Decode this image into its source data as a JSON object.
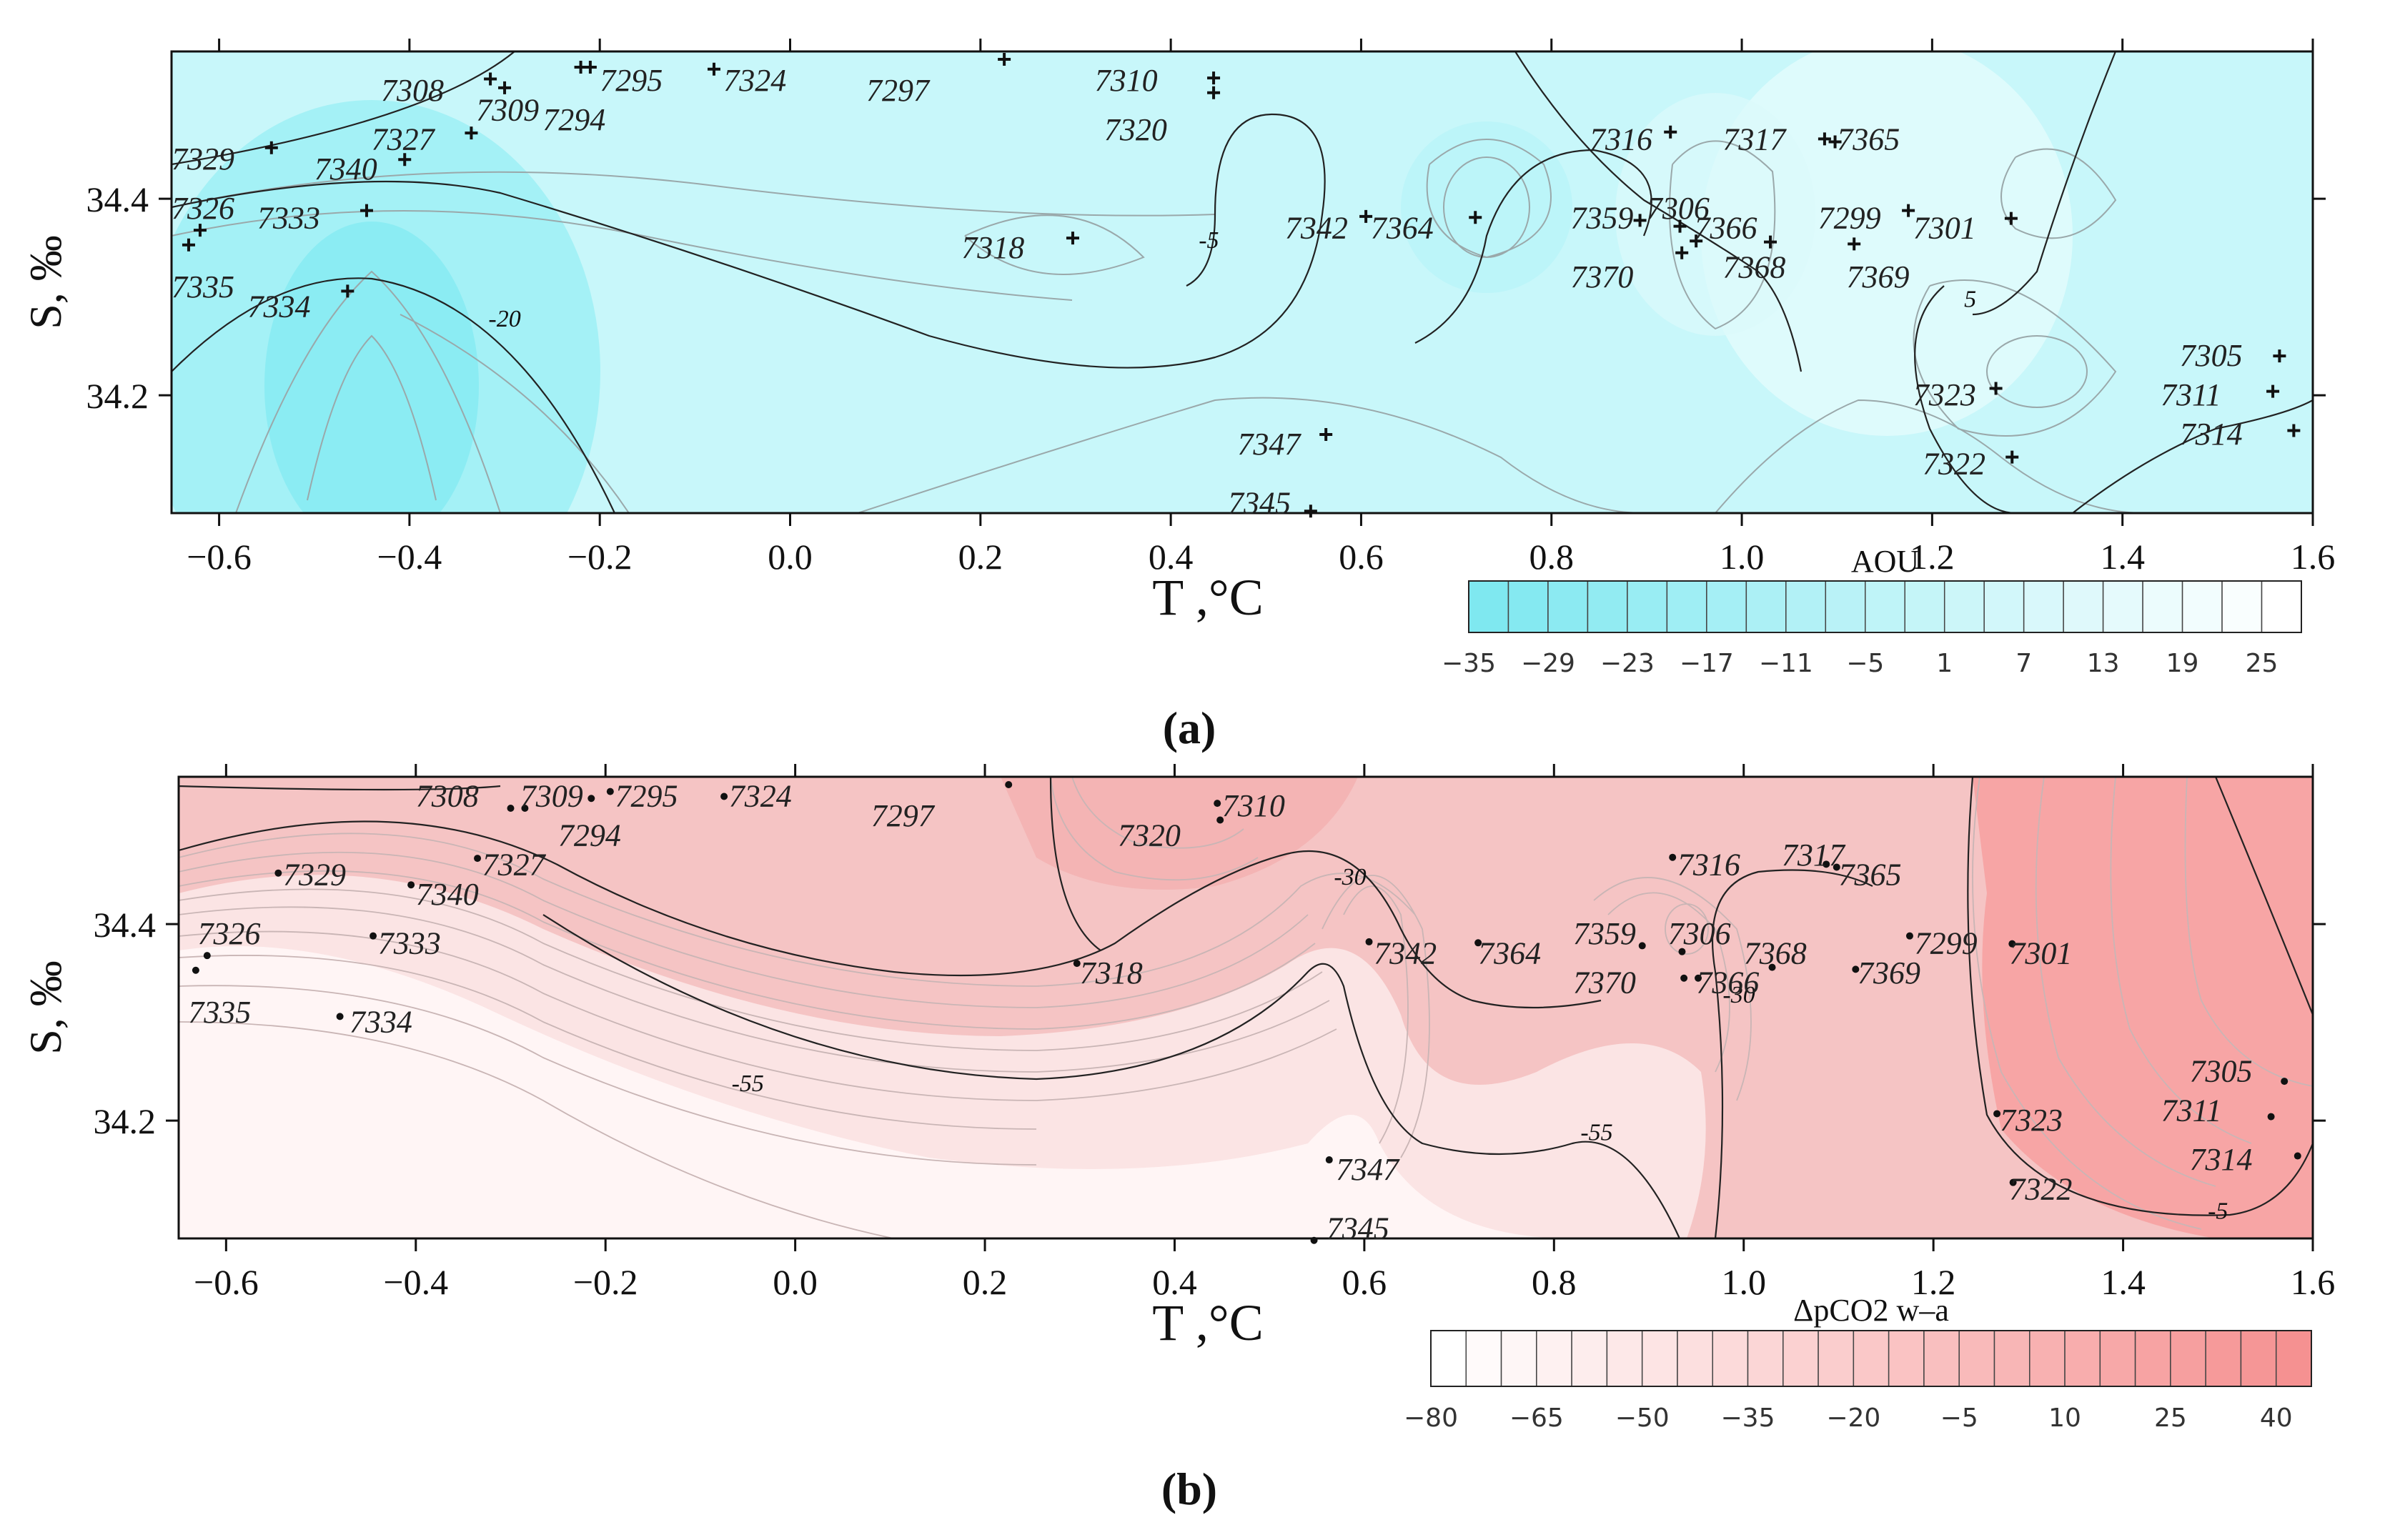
{
  "chart_data": [
    {
      "type": "contour",
      "panel_label": "(a)",
      "xlabel": "T ,°C",
      "ylabel": "S, ‰",
      "xlim": [
        -0.65,
        1.6
      ],
      "ylim": [
        34.08,
        34.55
      ],
      "xticks": [
        -0.6,
        -0.4,
        -0.2,
        0.0,
        0.2,
        0.4,
        0.6,
        0.8,
        1.0,
        1.2,
        1.4,
        1.6
      ],
      "xtick_labels": [
        "−0.6",
        "−0.4",
        "−0.2",
        "0.0",
        "0.2",
        "0.4",
        "0.6",
        "0.8",
        "1.0",
        "1.2",
        "1.4",
        "1.6"
      ],
      "yticks": [
        34.2,
        34.4
      ],
      "ytick_labels": [
        "34.2",
        "34.4"
      ],
      "colorbar": {
        "title": "AOU",
        "ticks": [
          "−35",
          "−29",
          "−23",
          "−17",
          "−11",
          "−5",
          "1",
          "7",
          "13",
          "19",
          "25"
        ],
        "cells": 21,
        "color_low": "#7fe8f0",
        "color_high": "#ffffff"
      },
      "background_color": "#c8f7fa",
      "contour_labels": [
        {
          "label": "-20",
          "x": -0.3,
          "y": 34.27
        },
        {
          "label": "-5",
          "x": 0.44,
          "y": 34.35
        },
        {
          "label": "5",
          "x": 1.24,
          "y": 34.29
        }
      ],
      "stations": [
        {
          "id": "7308",
          "t": -0.315,
          "s": 34.522,
          "lx": -0.43,
          "ly": 34.51
        },
        {
          "id": "7309",
          "t": -0.3,
          "s": 34.513,
          "lx": -0.33,
          "ly": 34.49
        },
        {
          "id": "7295",
          "t": -0.21,
          "s": 34.534,
          "lx": -0.2,
          "ly": 34.52
        },
        {
          "id": "7294",
          "t": -0.22,
          "s": 34.534,
          "lx": -0.26,
          "ly": 34.48
        },
        {
          "id": "7324",
          "t": -0.08,
          "s": 34.532,
          "lx": -0.07,
          "ly": 34.52
        },
        {
          "id": "7297",
          "t": 0.225,
          "s": 34.542,
          "lx": 0.08,
          "ly": 34.51
        },
        {
          "id": "7310",
          "t": 0.445,
          "s": 34.523,
          "lx": 0.32,
          "ly": 34.52
        },
        {
          "id": "7320",
          "t": 0.445,
          "s": 34.508,
          "lx": 0.33,
          "ly": 34.47
        },
        {
          "id": "7327",
          "t": -0.335,
          "s": 34.467,
          "lx": -0.44,
          "ly": 34.46
        },
        {
          "id": "7329",
          "t": -0.545,
          "s": 34.452,
          "lx": -0.65,
          "ly": 34.44
        },
        {
          "id": "7340",
          "t": -0.405,
          "s": 34.44,
          "lx": -0.5,
          "ly": 34.43
        },
        {
          "id": "7326",
          "t": -0.62,
          "s": 34.368,
          "lx": -0.65,
          "ly": 34.39
        },
        {
          "id": "7333",
          "t": -0.445,
          "s": 34.388,
          "lx": -0.56,
          "ly": 34.38
        },
        {
          "id": "7335",
          "t": -0.632,
          "s": 34.353,
          "lx": -0.65,
          "ly": 34.31
        },
        {
          "id": "7334",
          "t": -0.465,
          "s": 34.306,
          "lx": -0.57,
          "ly": 34.29
        },
        {
          "id": "7318",
          "t": 0.297,
          "s": 34.36,
          "lx": 0.18,
          "ly": 34.35
        },
        {
          "id": "7316",
          "t": 0.925,
          "s": 34.468,
          "lx": 0.84,
          "ly": 34.46
        },
        {
          "id": "7317",
          "t": 1.087,
          "s": 34.461,
          "lx": 0.98,
          "ly": 34.46
        },
        {
          "id": "7365",
          "t": 1.098,
          "s": 34.458,
          "lx": 1.1,
          "ly": 34.46
        },
        {
          "id": "7342",
          "t": 0.605,
          "s": 34.382,
          "lx": 0.52,
          "ly": 34.37
        },
        {
          "id": "7364",
          "t": 0.72,
          "s": 34.381,
          "lx": 0.61,
          "ly": 34.37
        },
        {
          "id": "7359",
          "t": 0.893,
          "s": 34.378,
          "lx": 0.82,
          "ly": 34.38
        },
        {
          "id": "7306",
          "t": 0.935,
          "s": 34.372,
          "lx": 0.9,
          "ly": 34.39
        },
        {
          "id": "7366",
          "t": 0.952,
          "s": 34.357,
          "lx": 0.95,
          "ly": 34.37
        },
        {
          "id": "7370",
          "t": 0.937,
          "s": 34.345,
          "lx": 0.82,
          "ly": 34.32
        },
        {
          "id": "7368",
          "t": 1.03,
          "s": 34.356,
          "lx": 0.98,
          "ly": 34.33
        },
        {
          "id": "7369",
          "t": 1.118,
          "s": 34.354,
          "lx": 1.11,
          "ly": 34.32
        },
        {
          "id": "7299",
          "t": 1.175,
          "s": 34.388,
          "lx": 1.08,
          "ly": 34.38
        },
        {
          "id": "7301",
          "t": 1.283,
          "s": 34.38,
          "lx": 1.18,
          "ly": 34.37
        },
        {
          "id": "7305",
          "t": 1.565,
          "s": 34.24,
          "lx": 1.46,
          "ly": 34.24
        },
        {
          "id": "7311",
          "t": 1.558,
          "s": 34.204,
          "lx": 1.44,
          "ly": 34.2
        },
        {
          "id": "7314",
          "t": 1.58,
          "s": 34.164,
          "lx": 1.46,
          "ly": 34.16
        },
        {
          "id": "7323",
          "t": 1.267,
          "s": 34.207,
          "lx": 1.18,
          "ly": 34.2
        },
        {
          "id": "7322",
          "t": 1.284,
          "s": 34.137,
          "lx": 1.19,
          "ly": 34.13
        },
        {
          "id": "7347",
          "t": 0.563,
          "s": 34.16,
          "lx": 0.47,
          "ly": 34.15
        },
        {
          "id": "7345",
          "t": 0.547,
          "s": 34.082,
          "lx": 0.46,
          "ly": 34.09
        }
      ]
    },
    {
      "type": "contour",
      "panel_label": "(b)",
      "xlabel": "T ,°C",
      "ylabel": "S, ‰",
      "xlim": [
        -0.65,
        1.6
      ],
      "ylim": [
        34.08,
        34.55
      ],
      "xticks": [
        -0.6,
        -0.4,
        -0.2,
        0.0,
        0.2,
        0.4,
        0.6,
        0.8,
        1.0,
        1.2,
        1.4,
        1.6
      ],
      "xtick_labels": [
        "−0.6",
        "−0.4",
        "−0.2",
        "0.0",
        "0.2",
        "0.4",
        "0.6",
        "0.8",
        "1.0",
        "1.2",
        "1.4",
        "1.6"
      ],
      "yticks": [
        34.2,
        34.4
      ],
      "ytick_labels": [
        "34.2",
        "34.4"
      ],
      "colorbar": {
        "title": "ΔpCO2 w–a",
        "ticks": [
          "−80",
          "−65",
          "−50",
          "−35",
          "−20",
          "−5",
          "10",
          "25",
          "40"
        ],
        "cells": 25,
        "color_low": "#ffffff",
        "color_high": "#f59191"
      },
      "background_color": "#f5c4c4",
      "contour_labels": [
        {
          "label": "-30",
          "x": 0.585,
          "y": 34.44
        },
        {
          "label": "-30",
          "x": 0.995,
          "y": 34.32
        },
        {
          "label": "-55",
          "x": -0.05,
          "y": 34.23
        },
        {
          "label": "-55",
          "x": 0.845,
          "y": 34.18
        },
        {
          "label": "-5",
          "x": 1.5,
          "y": 34.1
        }
      ],
      "stations": [
        {
          "id": "7308",
          "t": -0.3,
          "s": 34.518,
          "lx": -0.4,
          "ly": 34.53
        },
        {
          "id": "7309",
          "t": -0.285,
          "s": 34.518,
          "lx": -0.29,
          "ly": 34.53
        },
        {
          "id": "7295",
          "t": -0.195,
          "s": 34.535,
          "lx": -0.19,
          "ly": 34.53
        },
        {
          "id": "7294",
          "t": -0.215,
          "s": 34.528,
          "lx": -0.25,
          "ly": 34.49
        },
        {
          "id": "7324",
          "t": -0.075,
          "s": 34.53,
          "lx": -0.07,
          "ly": 34.53
        },
        {
          "id": "7297",
          "t": 0.225,
          "s": 34.542,
          "lx": 0.08,
          "ly": 34.51
        },
        {
          "id": "7310",
          "t": 0.445,
          "s": 34.523,
          "lx": 0.45,
          "ly": 34.52
        },
        {
          "id": "7320",
          "t": 0.448,
          "s": 34.506,
          "lx": 0.34,
          "ly": 34.49
        },
        {
          "id": "7327",
          "t": -0.335,
          "s": 34.467,
          "lx": -0.33,
          "ly": 34.46
        },
        {
          "id": "7329",
          "t": -0.545,
          "s": 34.452,
          "lx": -0.54,
          "ly": 34.45
        },
        {
          "id": "7340",
          "t": -0.405,
          "s": 34.44,
          "lx": -0.4,
          "ly": 34.43
        },
        {
          "id": "7326",
          "t": -0.62,
          "s": 34.368,
          "lx": -0.63,
          "ly": 34.39
        },
        {
          "id": "7333",
          "t": -0.445,
          "s": 34.388,
          "lx": -0.44,
          "ly": 34.38
        },
        {
          "id": "7335",
          "t": -0.632,
          "s": 34.353,
          "lx": -0.64,
          "ly": 34.31
        },
        {
          "id": "7334",
          "t": -0.48,
          "s": 34.306,
          "lx": -0.47,
          "ly": 34.3
        },
        {
          "id": "7318",
          "t": 0.297,
          "s": 34.36,
          "lx": 0.3,
          "ly": 34.35
        },
        {
          "id": "7316",
          "t": 0.925,
          "s": 34.468,
          "lx": 0.93,
          "ly": 34.46
        },
        {
          "id": "7317",
          "t": 1.087,
          "s": 34.461,
          "lx": 1.04,
          "ly": 34.47
        },
        {
          "id": "7365",
          "t": 1.098,
          "s": 34.458,
          "lx": 1.1,
          "ly": 34.45
        },
        {
          "id": "7342",
          "t": 0.605,
          "s": 34.382,
          "lx": 0.61,
          "ly": 34.37
        },
        {
          "id": "7364",
          "t": 0.72,
          "s": 34.381,
          "lx": 0.72,
          "ly": 34.37
        },
        {
          "id": "7359",
          "t": 0.893,
          "s": 34.378,
          "lx": 0.82,
          "ly": 34.39
        },
        {
          "id": "7306",
          "t": 0.935,
          "s": 34.372,
          "lx": 0.92,
          "ly": 34.39
        },
        {
          "id": "7370",
          "t": 0.937,
          "s": 34.345,
          "lx": 0.82,
          "ly": 34.34
        },
        {
          "id": "7366",
          "t": 0.952,
          "s": 34.345,
          "lx": 0.95,
          "ly": 34.34
        },
        {
          "id": "7368",
          "t": 1.03,
          "s": 34.356,
          "lx": 1.0,
          "ly": 34.37
        },
        {
          "id": "7369",
          "t": 1.118,
          "s": 34.354,
          "lx": 1.12,
          "ly": 34.35
        },
        {
          "id": "7299",
          "t": 1.175,
          "s": 34.388,
          "lx": 1.18,
          "ly": 34.38
        },
        {
          "id": "7301",
          "t": 1.283,
          "s": 34.38,
          "lx": 1.28,
          "ly": 34.37
        },
        {
          "id": "7305",
          "t": 1.57,
          "s": 34.24,
          "lx": 1.47,
          "ly": 34.25
        },
        {
          "id": "7311",
          "t": 1.556,
          "s": 34.204,
          "lx": 1.44,
          "ly": 34.21
        },
        {
          "id": "7314",
          "t": 1.584,
          "s": 34.164,
          "lx": 1.47,
          "ly": 34.16
        },
        {
          "id": "7323",
          "t": 1.267,
          "s": 34.207,
          "lx": 1.27,
          "ly": 34.2
        },
        {
          "id": "7322",
          "t": 1.284,
          "s": 34.137,
          "lx": 1.28,
          "ly": 34.13
        },
        {
          "id": "7347",
          "t": 0.563,
          "s": 34.16,
          "lx": 0.57,
          "ly": 34.15
        },
        {
          "id": "7345",
          "t": 0.547,
          "s": 34.078,
          "lx": 0.56,
          "ly": 34.09
        }
      ]
    }
  ]
}
